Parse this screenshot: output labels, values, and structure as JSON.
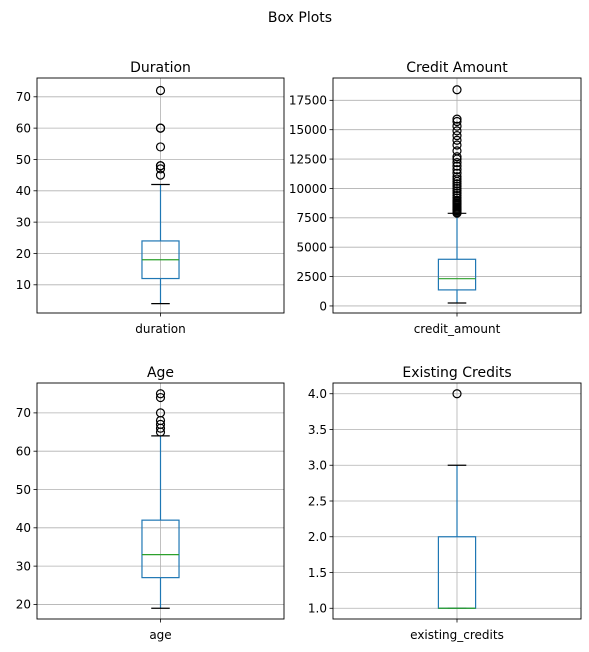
{
  "suptitle": "Box Plots",
  "colors": {
    "box": "#1f77b4",
    "median": "#2ca02c",
    "grid": "#b0b0b0",
    "flier": "#000000"
  },
  "chart_data": [
    {
      "type": "box",
      "title": "Duration",
      "category": "duration",
      "ylim": [
        1,
        76
      ],
      "yticks": [
        10,
        20,
        30,
        40,
        50,
        60,
        70
      ],
      "ytick_labels": [
        "10",
        "20",
        "30",
        "40",
        "50",
        "60",
        "70"
      ],
      "stats": {
        "whisker_low": 4,
        "q1": 12,
        "median": 18,
        "q3": 24,
        "whisker_high": 42
      },
      "fliers": [
        45,
        47,
        48,
        48,
        54,
        60,
        60,
        72
      ]
    },
    {
      "type": "box",
      "title": "Credit Amount",
      "category": "credit_amount",
      "ylim": [
        -600,
        19400
      ],
      "yticks": [
        0,
        2500,
        5000,
        7500,
        10000,
        12500,
        15000,
        17500
      ],
      "ytick_labels": [
        "0",
        "2500",
        "5000",
        "7500",
        "10000",
        "12500",
        "15000",
        "17500"
      ],
      "stats": {
        "whisker_low": 250,
        "q1": 1366,
        "median": 2320,
        "q3": 3972,
        "whisker_high": 7882
      },
      "fliers": [
        7900,
        8000,
        8100,
        8200,
        8300,
        8400,
        8500,
        8600,
        8700,
        8800,
        8900,
        9000,
        9200,
        9400,
        9600,
        9800,
        10000,
        10200,
        10400,
        10600,
        10800,
        11000,
        11300,
        11600,
        11900,
        12200,
        12500,
        12700,
        13200,
        13700,
        14100,
        14500,
        14900,
        15300,
        15700,
        15900,
        18400
      ]
    },
    {
      "type": "box",
      "title": "Age",
      "category": "age",
      "ylim": [
        16.2,
        77.8
      ],
      "yticks": [
        20,
        30,
        40,
        50,
        60,
        70
      ],
      "ytick_labels": [
        "20",
        "30",
        "40",
        "50",
        "60",
        "70"
      ],
      "stats": {
        "whisker_low": 19,
        "q1": 27,
        "median": 33,
        "q3": 42,
        "whisker_high": 64
      },
      "fliers": [
        65,
        66,
        67,
        68,
        70,
        74,
        75
      ]
    },
    {
      "type": "box",
      "title": "Existing Credits",
      "category": "existing_credits",
      "ylim": [
        0.85,
        4.15
      ],
      "yticks": [
        1.0,
        1.5,
        2.0,
        2.5,
        3.0,
        3.5,
        4.0
      ],
      "ytick_labels": [
        "1.0",
        "1.5",
        "2.0",
        "2.5",
        "3.0",
        "3.5",
        "4.0"
      ],
      "stats": {
        "whisker_low": 1,
        "q1": 1,
        "median": 1,
        "q3": 2,
        "whisker_high": 3
      },
      "fliers": [
        4
      ]
    }
  ]
}
